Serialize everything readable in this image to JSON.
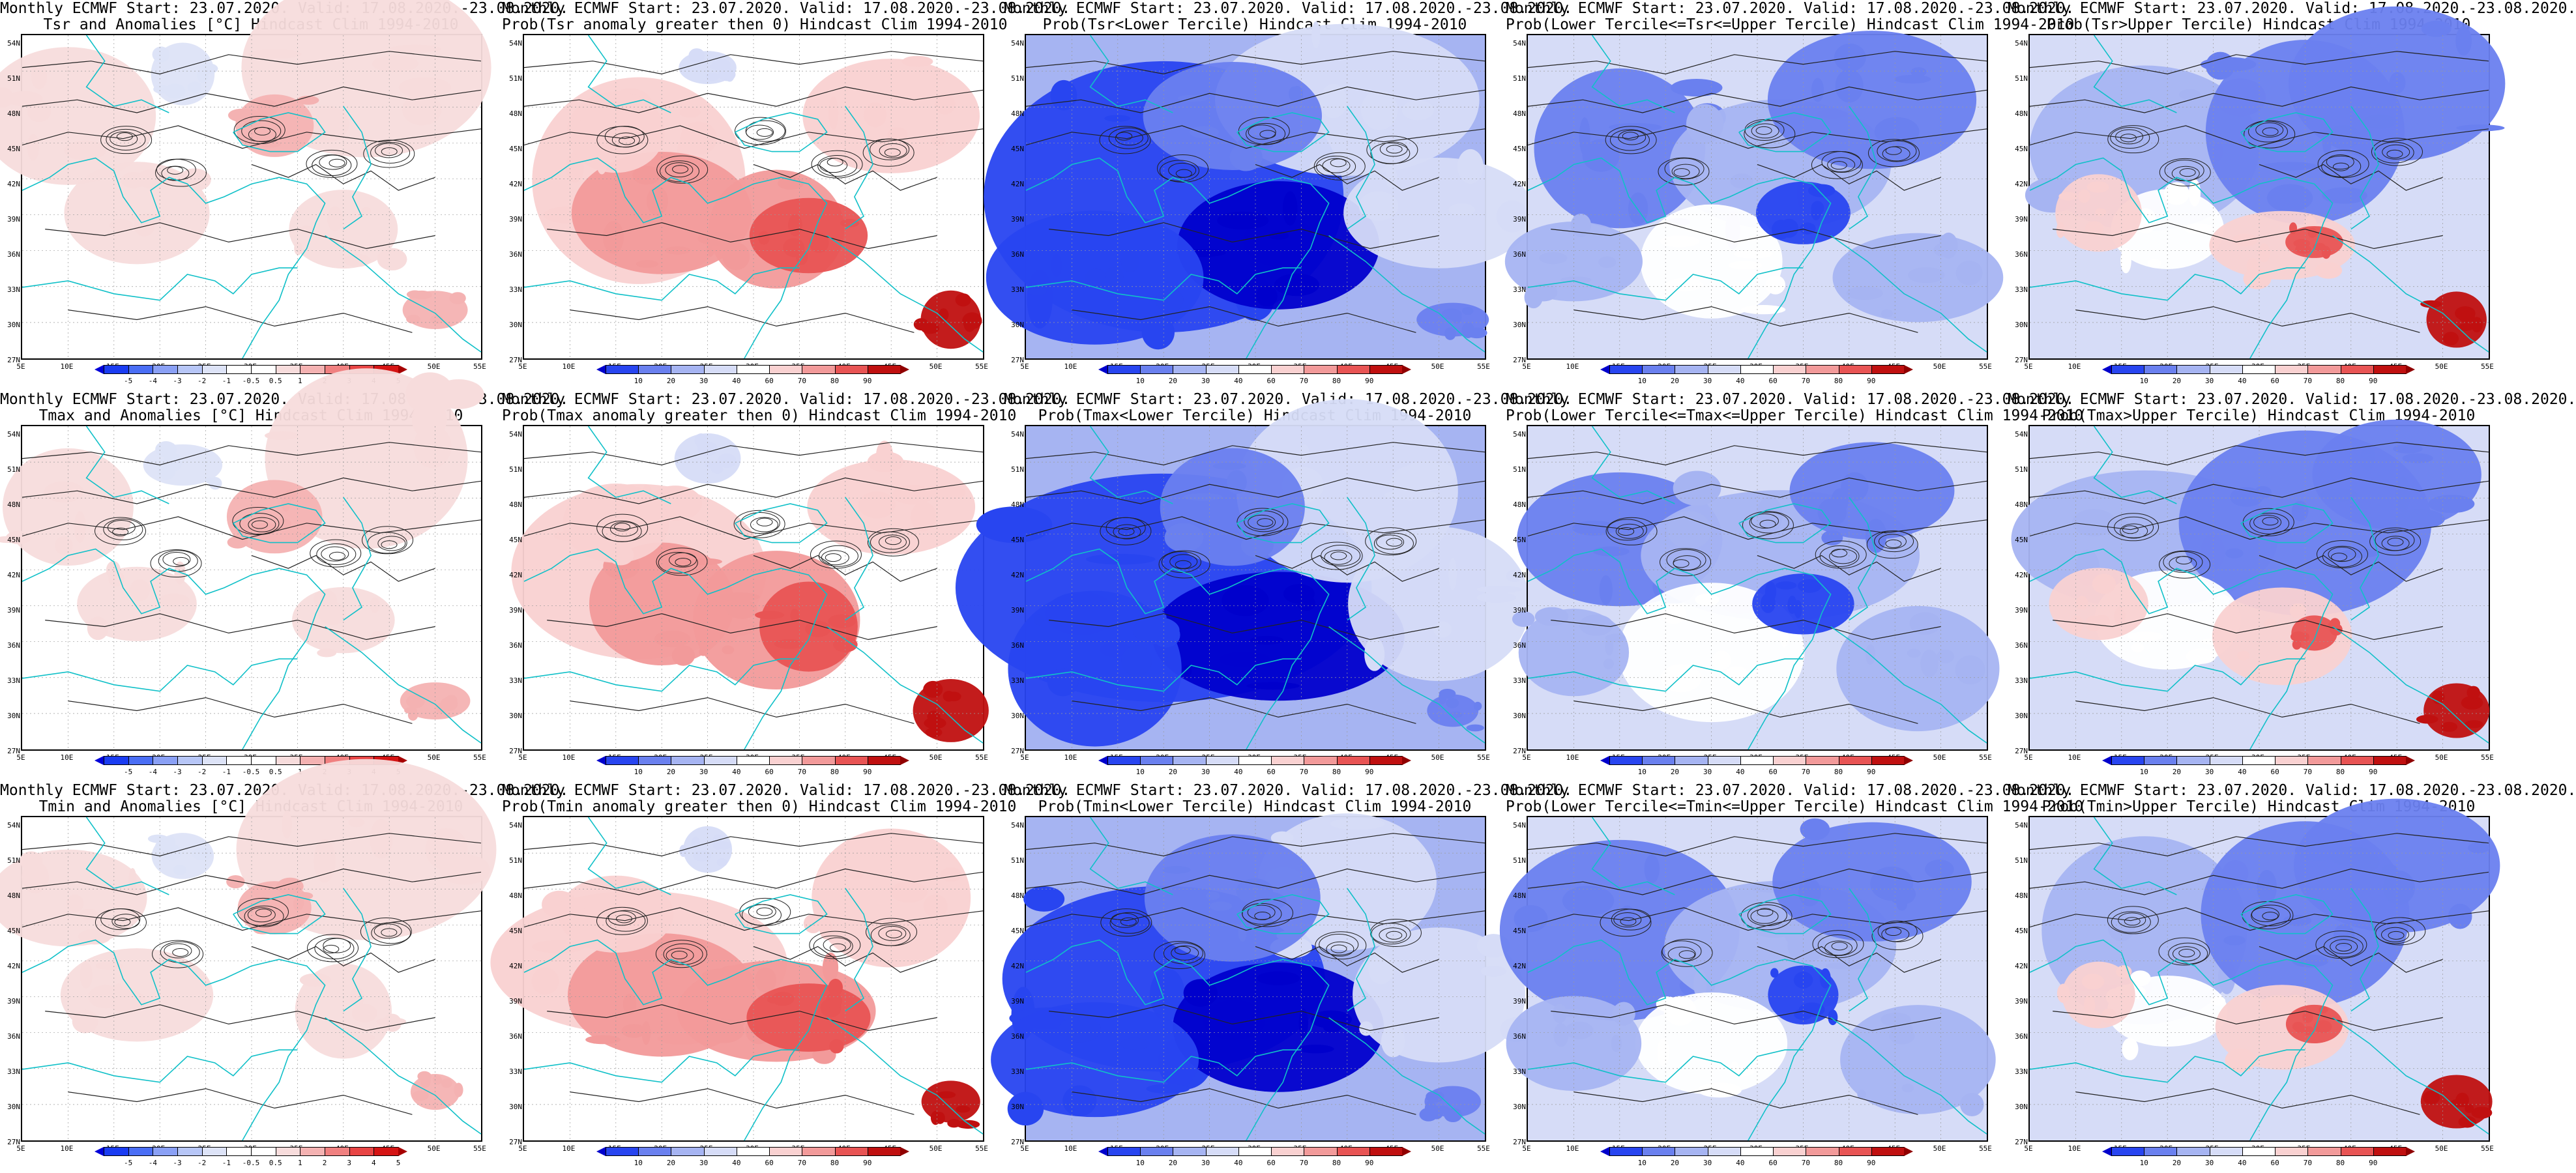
{
  "colors": {
    "anomaly": [
      "#0000d9",
      "#1a3cf2",
      "#4a6ef5",
      "#8aa0f5",
      "#b7c6f7",
      "#dde3f7",
      "#ffffff",
      "#ffffff",
      "#f7dcdc",
      "#f4b2b2",
      "#f08080",
      "#e84545",
      "#d51414",
      "#a60000"
    ],
    "prob": [
      "#0000cc",
      "#2845f0",
      "#6a80ef",
      "#a6b4f2",
      "#d6dcf7",
      "#ffffff",
      "#f9d1d1",
      "#f29a9a",
      "#e85454",
      "#c01010",
      "#900000"
    ],
    "contour": "#222222",
    "coast": "#10c0c8"
  },
  "scales": {
    "anomaly_labels": [
      "-5",
      "-4",
      "-3",
      "-2",
      "-1",
      "-0.5",
      "0.5",
      "1",
      "2",
      "3",
      "4",
      "5"
    ],
    "prob_labels": [
      "10",
      "20",
      "30",
      "40",
      "60",
      "70",
      "80",
      "90"
    ]
  },
  "axes": {
    "lat_labels": [
      "54N",
      "51N",
      "48N",
      "45N",
      "42N",
      "39N",
      "36N",
      "33N",
      "30N",
      "27N"
    ],
    "lon_labels": [
      "5E",
      "10E",
      "15E",
      "20E",
      "25E",
      "30E",
      "35E",
      "40E",
      "45E",
      "50E",
      "55E"
    ]
  },
  "panels": [
    {
      "row": 0,
      "col": 0,
      "scale": "anomaly",
      "style": "anom",
      "line1": "Monthly ECMWF Start: 23.07.2020. Valid: 17.08.2020.-23.08.2020.",
      "line2": "Tsr and Anomalies [°C] Hindcast Clim 1994-2010"
    },
    {
      "row": 0,
      "col": 1,
      "scale": "prob",
      "style": "redhot",
      "line1": "Monthly ECMWF Start: 23.07.2020. Valid: 17.08.2020.-23.08.2020.",
      "line2": "Prob(Tsr anomaly greater then 0) Hindcast Clim 1994-2010"
    },
    {
      "row": 0,
      "col": 2,
      "scale": "prob",
      "style": "bluedeep",
      "line1": "Monthly ECMWF Start: 23.07.2020. Valid: 17.08.2020.-23.08.2020.",
      "line2": "Prob(Tsr<Lower Tercile) Hindcast Clim 1994-2010"
    },
    {
      "row": 0,
      "col": 3,
      "scale": "prob",
      "style": "bluemid",
      "line1": "Monthly ECMWF Start: 23.07.2020. Valid: 17.08.2020.-23.08.2020.",
      "line2": "Prob(Lower Tercile<=Tsr<=Upper Tercile) Hindcast Clim 1994-2010"
    },
    {
      "row": 0,
      "col": 4,
      "scale": "prob",
      "style": "upper",
      "line1": "Monthly ECMWF Start: 23.07.2020. Valid: 17.08.2020.-23.08.2020.",
      "line2": "Prob(Tsr>Upper Tercile) Hindcast Clim 1994-2010"
    },
    {
      "row": 1,
      "col": 0,
      "scale": "anomaly",
      "style": "anom",
      "line1": "Monthly ECMWF Start: 23.07.2020. Valid: 17.08.2020.-23.08.2020.",
      "line2": "Tmax and Anomalies [°C] Hindcast Clim 1994-2010"
    },
    {
      "row": 1,
      "col": 1,
      "scale": "prob",
      "style": "redhot",
      "line1": "Monthly ECMWF Start: 23.07.2020. Valid: 17.08.2020.-23.08.2020.",
      "line2": "Prob(Tmax anomaly greater then 0) Hindcast Clim 1994-2010"
    },
    {
      "row": 1,
      "col": 2,
      "scale": "prob",
      "style": "bluedeep",
      "line1": "Monthly ECMWF Start: 23.07.2020. Valid: 17.08.2020.-23.08.2020.",
      "line2": "Prob(Tmax<Lower Tercile) Hindcast Clim 1994-2010"
    },
    {
      "row": 1,
      "col": 3,
      "scale": "prob",
      "style": "bluemid",
      "line1": "Monthly ECMWF Start: 23.07.2020. Valid: 17.08.2020.-23.08.2020.",
      "line2": "Prob(Lower Tercile<=Tmax<=Upper Tercile) Hindcast Clim 1994-2010"
    },
    {
      "row": 1,
      "col": 4,
      "scale": "prob",
      "style": "upper",
      "line1": "Monthly ECMWF Start: 23.07.2020. Valid: 17.08.2020.-23.08.2020.",
      "line2": "Prob(Tmax>Upper Tercile) Hindcast Clim 1994-2010"
    },
    {
      "row": 2,
      "col": 0,
      "scale": "anomaly",
      "style": "anom",
      "line1": "Monthly ECMWF Start: 23.07.2020. Valid: 17.08.2020.-23.08.2020.",
      "line2": "Tmin and Anomalies [°C] Hindcast Clim 1994-2010"
    },
    {
      "row": 2,
      "col": 1,
      "scale": "prob",
      "style": "redhot",
      "line1": "Monthly ECMWF Start: 23.07.2020. Valid: 17.08.2020.-23.08.2020.",
      "line2": "Prob(Tmin anomaly greater then 0) Hindcast Clim 1994-2010"
    },
    {
      "row": 2,
      "col": 2,
      "scale": "prob",
      "style": "bluedeep",
      "line1": "Monthly ECMWF Start: 23.07.2020. Valid: 17.08.2020.-23.08.2020.",
      "line2": "Prob(Tmin<Lower Tercile) Hindcast Clim 1994-2010"
    },
    {
      "row": 2,
      "col": 3,
      "scale": "prob",
      "style": "bluemid",
      "line1": "Monthly ECMWF Start: 23.07.2020. Valid: 17.08.2020.-23.08.2020.",
      "line2": "Prob(Lower Tercile<=Tmin<=Upper Tercile) Hindcast Clim 1994-2010"
    },
    {
      "row": 2,
      "col": 4,
      "scale": "prob",
      "style": "upper",
      "line1": "Monthly ECMWF Start: 23.07.2020. Valid: 17.08.2020.-23.08.2020.",
      "line2": "Prob(Tmin>Upper Tercile) Hindcast Clim 1994-2010"
    }
  ]
}
